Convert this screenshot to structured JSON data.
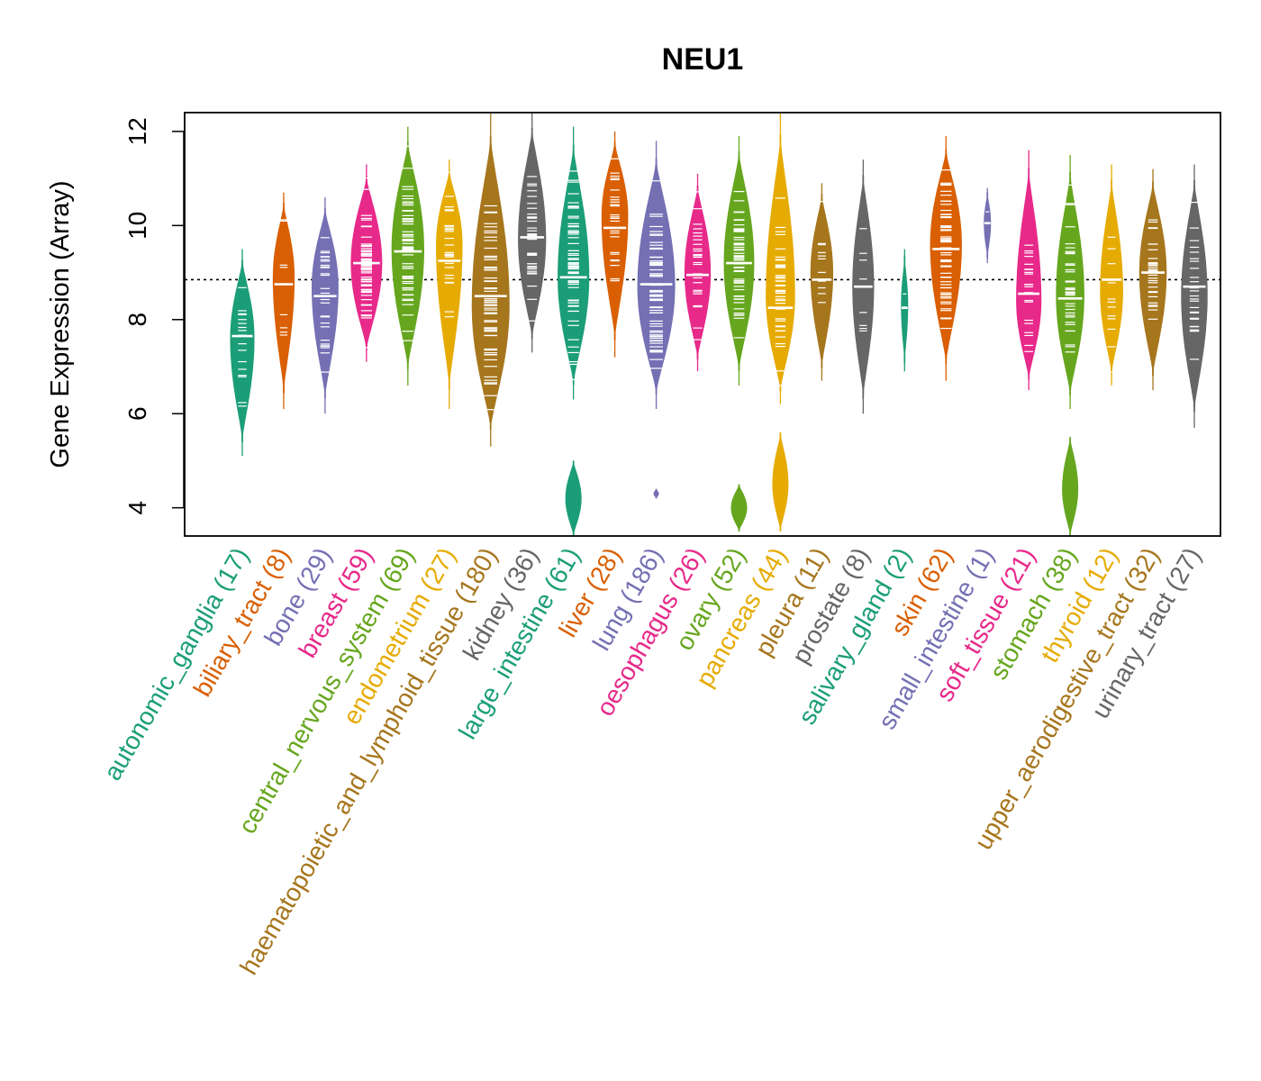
{
  "chart_data": {
    "type": "violin",
    "title": "NEU1",
    "xlabel": "",
    "ylabel": "Gene Expression (Array)",
    "ylim": [
      3.4,
      12.4
    ],
    "yticks": [
      4,
      6,
      8,
      10,
      12
    ],
    "reference_line": 8.85,
    "categories": [
      {
        "label": "autonomic_ganglia (17)",
        "name": "autonomic_ganglia",
        "n": 17,
        "color": "#1b9e77",
        "median": 7.65,
        "min": 5.1,
        "max": 9.5,
        "mode": 7.6
      },
      {
        "label": "biliary_tract (8)",
        "name": "biliary_tract",
        "n": 8,
        "color": "#d95f02",
        "median": 8.75,
        "min": 6.1,
        "max": 10.7,
        "mode": 8.9
      },
      {
        "label": "bone (29)",
        "name": "bone",
        "n": 29,
        "color": "#7570b3",
        "median": 8.5,
        "min": 6.0,
        "max": 10.6,
        "mode": 8.7
      },
      {
        "label": "breast (59)",
        "name": "breast",
        "n": 59,
        "color": "#e7298a",
        "median": 9.2,
        "min": 7.1,
        "max": 11.3,
        "mode": 9.2
      },
      {
        "label": "central_nervous_system (69)",
        "name": "central_nervous_system",
        "n": 69,
        "color": "#66a61e",
        "median": 9.45,
        "min": 6.6,
        "max": 12.1,
        "mode": 9.5
      },
      {
        "label": "endometrium (27)",
        "name": "endometrium",
        "n": 27,
        "color": "#e6ab02",
        "median": 9.25,
        "min": 6.1,
        "max": 11.4,
        "mode": 9.6
      },
      {
        "label": "haematopoietic_and_lymphoid_tissue (180)",
        "name": "haematopoietic_and_lymphoid_tissue",
        "n": 180,
        "color": "#a6761d",
        "median": 8.5,
        "min": 5.3,
        "max": 12.4,
        "mode": 8.3
      },
      {
        "label": "kidney (36)",
        "name": "kidney",
        "n": 36,
        "color": "#666666",
        "median": 9.75,
        "min": 7.3,
        "max": 12.4,
        "mode": 9.7
      },
      {
        "label": "large_intestine (61)",
        "name": "large_intestine",
        "n": 61,
        "color": "#1b9e77",
        "median": 8.9,
        "min": 3.4,
        "max": 12.1,
        "mode": 8.9
      },
      {
        "label": "liver (28)",
        "name": "liver",
        "n": 28,
        "color": "#d95f02",
        "median": 9.95,
        "min": 7.2,
        "max": 12.0,
        "mode": 10.2
      },
      {
        "label": "lung (186)",
        "name": "lung",
        "n": 186,
        "color": "#7570b3",
        "median": 8.75,
        "min": 4.2,
        "max": 11.8,
        "mode": 8.7
      },
      {
        "label": "oesophagus (26)",
        "name": "oesophagus",
        "n": 26,
        "color": "#e7298a",
        "median": 8.95,
        "min": 6.9,
        "max": 11.1,
        "mode": 9.0
      },
      {
        "label": "ovary (52)",
        "name": "ovary",
        "n": 52,
        "color": "#66a61e",
        "median": 9.2,
        "min": 3.5,
        "max": 11.9,
        "mode": 9.2
      },
      {
        "label": "pancreas (44)",
        "name": "pancreas",
        "n": 44,
        "color": "#e6ab02",
        "median": 8.25,
        "min": 3.5,
        "max": 12.4,
        "mode": 8.5
      },
      {
        "label": "pleura (11)",
        "name": "pleura",
        "n": 11,
        "color": "#a6761d",
        "median": 8.85,
        "min": 6.7,
        "max": 10.9,
        "mode": 9.0
      },
      {
        "label": "prostate (8)",
        "name": "prostate",
        "n": 8,
        "color": "#666666",
        "median": 8.7,
        "min": 6.0,
        "max": 11.4,
        "mode": 8.7
      },
      {
        "label": "salivary_gland (2)",
        "name": "salivary_gland",
        "n": 2,
        "color": "#1b9e77",
        "median": 8.25,
        "min": 6.9,
        "max": 9.5,
        "mode": 8.3
      },
      {
        "label": "skin (62)",
        "name": "skin",
        "n": 62,
        "color": "#d95f02",
        "median": 9.5,
        "min": 6.7,
        "max": 11.9,
        "mode": 9.6
      },
      {
        "label": "small_intestine (1)",
        "name": "small_intestine",
        "n": 1,
        "color": "#7570b3",
        "median": 10.05,
        "min": 9.2,
        "max": 10.8,
        "mode": 10.05
      },
      {
        "label": "soft_tissue (21)",
        "name": "soft_tissue",
        "n": 21,
        "color": "#e7298a",
        "median": 8.55,
        "min": 6.5,
        "max": 11.6,
        "mode": 8.4
      },
      {
        "label": "stomach (38)",
        "name": "stomach",
        "n": 38,
        "color": "#66a61e",
        "median": 8.45,
        "min": 3.4,
        "max": 11.5,
        "mode": 8.5
      },
      {
        "label": "thyroid (12)",
        "name": "thyroid",
        "n": 12,
        "color": "#e6ab02",
        "median": 8.85,
        "min": 6.6,
        "max": 11.3,
        "mode": 8.6
      },
      {
        "label": "upper_aerodigestive_tract (32)",
        "name": "upper_aerodigestive_tract",
        "n": 32,
        "color": "#a6761d",
        "median": 9.0,
        "min": 6.5,
        "max": 11.2,
        "mode": 9.0
      },
      {
        "label": "urinary_tract (27)",
        "name": "urinary_tract",
        "n": 27,
        "color": "#666666",
        "median": 8.7,
        "min": 5.7,
        "max": 11.3,
        "mode": 8.5
      }
    ],
    "secondary_modes": [
      {
        "name": "large_intestine",
        "min": 3.4,
        "max": 5.0,
        "mode": 4.2
      },
      {
        "name": "lung",
        "min": 4.2,
        "max": 4.4,
        "mode": 4.3
      },
      {
        "name": "ovary",
        "min": 3.5,
        "max": 4.5,
        "mode": 4.0
      },
      {
        "name": "pancreas",
        "min": 3.5,
        "max": 5.6,
        "mode": 4.5
      },
      {
        "name": "stomach",
        "min": 3.4,
        "max": 5.5,
        "mode": 4.4
      }
    ]
  }
}
